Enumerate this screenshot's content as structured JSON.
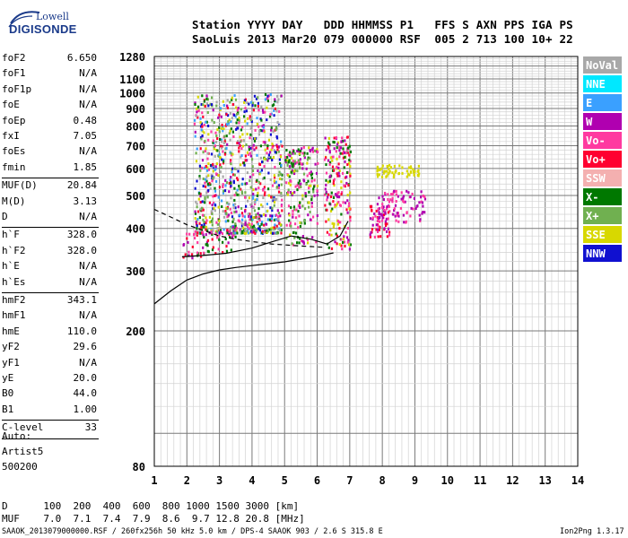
{
  "logo": {
    "line1": "Lowell",
    "line2": "DIGISONDE"
  },
  "header": {
    "line1": "Station YYYY DAY   DDD HHMMSS P1   FFS S AXN PPS IGA PS",
    "line2": "SaoLuis 2013 Mar20 079 000000 RSF  005 2 713 100 10+ 22"
  },
  "params": [
    {
      "name": "foF2",
      "value": "6.650"
    },
    {
      "name": "foF1",
      "value": "N/A"
    },
    {
      "name": "foF1p",
      "value": "N/A"
    },
    {
      "name": "foE",
      "value": "N/A"
    },
    {
      "name": "foEp",
      "value": "0.48"
    },
    {
      "name": "fxI",
      "value": "7.05"
    },
    {
      "name": "foEs",
      "value": "N/A"
    },
    {
      "name": "fmin",
      "value": "1.85"
    },
    {
      "name": "MUF(D)",
      "value": "20.84"
    },
    {
      "name": "M(D)",
      "value": "3.13"
    },
    {
      "name": "D",
      "value": "N/A"
    },
    {
      "name": "h`F",
      "value": "328.0"
    },
    {
      "name": "h`F2",
      "value": "328.0"
    },
    {
      "name": "h`E",
      "value": "N/A"
    },
    {
      "name": "h`Es",
      "value": "N/A"
    },
    {
      "name": "hmF2",
      "value": "343.1"
    },
    {
      "name": "hmF1",
      "value": "N/A"
    },
    {
      "name": "hmE",
      "value": "110.0"
    },
    {
      "name": "yF2",
      "value": "29.6"
    },
    {
      "name": "yF1",
      "value": "N/A"
    },
    {
      "name": "yE",
      "value": "20.0"
    },
    {
      "name": "B0",
      "value": "44.0"
    },
    {
      "name": "B1",
      "value": "1.00"
    },
    {
      "name": "C-level",
      "value": "33"
    }
  ],
  "notes": {
    "auto": "Auto:",
    "artist": "Artist5",
    "version": "500200"
  },
  "muf_table": {
    "d_line": "D      100  200  400  600  800 1000 1500 3000 [km]",
    "muf_line": "MUF    7.0  7.1  7.4  7.9  8.6  9.7 12.8 20.8 [MHz]"
  },
  "footer": {
    "left": "SAAOK_2013079000000.RSF / 260fx256h 50 kHz 5.0 km / DPS-4 SAAOK 903 / 2.6 S 315.8 E",
    "right": "Ion2Png 1.3.17"
  },
  "legend": [
    {
      "label": "NoVal",
      "color": "#a8a8a8",
      "text": "#ffffff"
    },
    {
      "label": "NNE",
      "color": "#00e8ff",
      "text": "#ffffff"
    },
    {
      "label": "E",
      "color": "#3aa0ff",
      "text": "#ffffff"
    },
    {
      "label": "W",
      "color": "#b000b0",
      "text": "#ffffff"
    },
    {
      "label": "Vo-",
      "color": "#ff3aa0",
      "text": "#ffffff"
    },
    {
      "label": "Vo+",
      "color": "#ff0030",
      "text": "#ffffff"
    },
    {
      "label": "SSW",
      "color": "#f4b0b0",
      "text": "#ffffff"
    },
    {
      "label": "X-",
      "color": "#007800",
      "text": "#ffffff"
    },
    {
      "label": "X+",
      "color": "#70b050",
      "text": "#ffffff"
    },
    {
      "label": "SSE",
      "color": "#d8d800",
      "text": "#ffffff"
    },
    {
      "label": "NNW",
      "color": "#1010d0",
      "text": "#ffffff"
    }
  ],
  "chart_data": {
    "type": "scatter",
    "title": "",
    "xlabel": "",
    "ylabel": "",
    "xlim": [
      1,
      14
    ],
    "xticks": [
      "1",
      "2",
      "3",
      "4",
      "5",
      "6",
      "7",
      "8",
      "9",
      "10",
      "11",
      "12",
      "13",
      "14"
    ],
    "ylim": [
      80,
      1280
    ],
    "y_scale": "log",
    "yticks": [
      "80",
      "200",
      "300",
      "400",
      "500",
      "600",
      "700",
      "800",
      "900",
      "1000",
      "1100",
      "1280"
    ],
    "grid": true,
    "legend_position": "right",
    "clusters": [
      {
        "f_range": [
          1.85,
          3.5
        ],
        "h_range": [
          330,
          390
        ],
        "mix": [
          "Vo+",
          "Vo-",
          "X-",
          "W"
        ]
      },
      {
        "f_range": [
          2.2,
          4.9
        ],
        "h_range": [
          390,
          1000
        ],
        "mix": [
          "SSE",
          "X-",
          "X+",
          "Vo-",
          "W",
          "Vo+",
          "NNW",
          "NoVal",
          "E"
        ]
      },
      {
        "f_range": [
          5.0,
          6.0
        ],
        "h_range": [
          360,
          700
        ],
        "mix": [
          "SSE",
          "W",
          "Vo-",
          "X-",
          "X+"
        ]
      },
      {
        "f_range": [
          6.2,
          7.0
        ],
        "h_range": [
          350,
          750
        ],
        "mix": [
          "SSE",
          "W",
          "Vo-",
          "Vo+",
          "X-"
        ]
      },
      {
        "f_range": [
          7.6,
          8.2
        ],
        "h_range": [
          380,
          470
        ],
        "mix": [
          "Vo+",
          "Vo-",
          "W"
        ]
      },
      {
        "f_range": [
          7.8,
          9.3
        ],
        "h_range": [
          420,
          520
        ],
        "mix": [
          "W",
          "Vo-"
        ]
      },
      {
        "f_range": [
          7.8,
          9.1
        ],
        "h_range": [
          570,
          620
        ],
        "mix": [
          "SSE"
        ]
      }
    ],
    "trace_points": [
      {
        "f": 1.0,
        "h": 240
      },
      {
        "f": 1.5,
        "h": 262
      },
      {
        "f": 2.0,
        "h": 282
      },
      {
        "f": 2.5,
        "h": 294
      },
      {
        "f": 3.0,
        "h": 302
      },
      {
        "f": 3.5,
        "h": 307
      },
      {
        "f": 4.0,
        "h": 311
      },
      {
        "f": 4.5,
        "h": 315
      },
      {
        "f": 5.0,
        "h": 319
      },
      {
        "f": 5.5,
        "h": 325
      },
      {
        "f": 6.0,
        "h": 331
      },
      {
        "f": 6.5,
        "h": 339
      }
    ],
    "second_trace": [
      {
        "f": 1.85,
        "h": 330
      },
      {
        "f": 2.5,
        "h": 333
      },
      {
        "f": 3.2,
        "h": 338
      },
      {
        "f": 4.0,
        "h": 350
      },
      {
        "f": 4.6,
        "h": 365
      },
      {
        "f": 5.2,
        "h": 380
      },
      {
        "f": 5.8,
        "h": 372
      },
      {
        "f": 6.3,
        "h": 360
      },
      {
        "f": 6.7,
        "h": 380
      },
      {
        "f": 6.95,
        "h": 420
      }
    ],
    "dashed_trace": [
      {
        "f": 1.0,
        "h": 455
      },
      {
        "f": 1.5,
        "h": 432
      },
      {
        "f": 2.0,
        "h": 410
      },
      {
        "f": 2.5,
        "h": 395
      },
      {
        "f": 3.0,
        "h": 380
      },
      {
        "f": 3.5,
        "h": 372
      },
      {
        "f": 4.0,
        "h": 366
      },
      {
        "f": 4.6,
        "h": 360
      },
      {
        "f": 5.3,
        "h": 356
      },
      {
        "f": 6.2,
        "h": 352
      }
    ]
  }
}
